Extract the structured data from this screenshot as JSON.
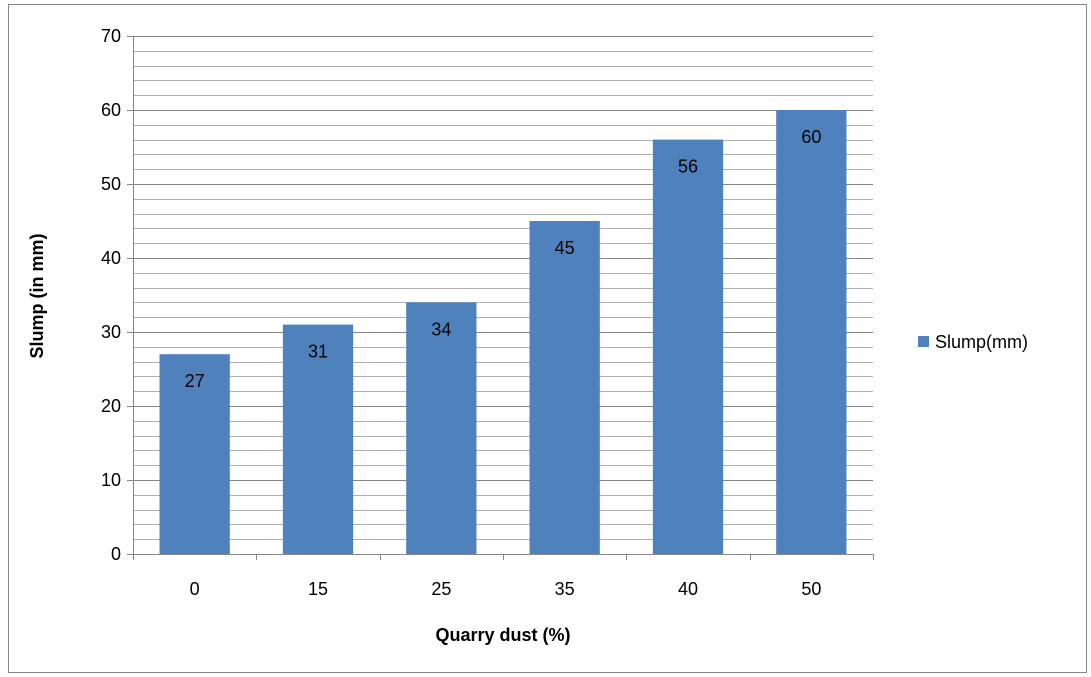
{
  "chart_data": {
    "type": "bar",
    "categories": [
      "0",
      "15",
      "25",
      "35",
      "40",
      "50"
    ],
    "series": [
      {
        "name": "Slump(mm)",
        "values": [
          27,
          31,
          34,
          45,
          56,
          60
        ],
        "color": "#4f81bd"
      }
    ],
    "xlabel": "Quarry dust (%)",
    "ylabel": "Slump (in mm)",
    "ylim": [
      0,
      70
    ],
    "y_major_step": 10,
    "y_minor_step": 2,
    "grid": true,
    "data_labels": true,
    "legend_position": "right"
  }
}
